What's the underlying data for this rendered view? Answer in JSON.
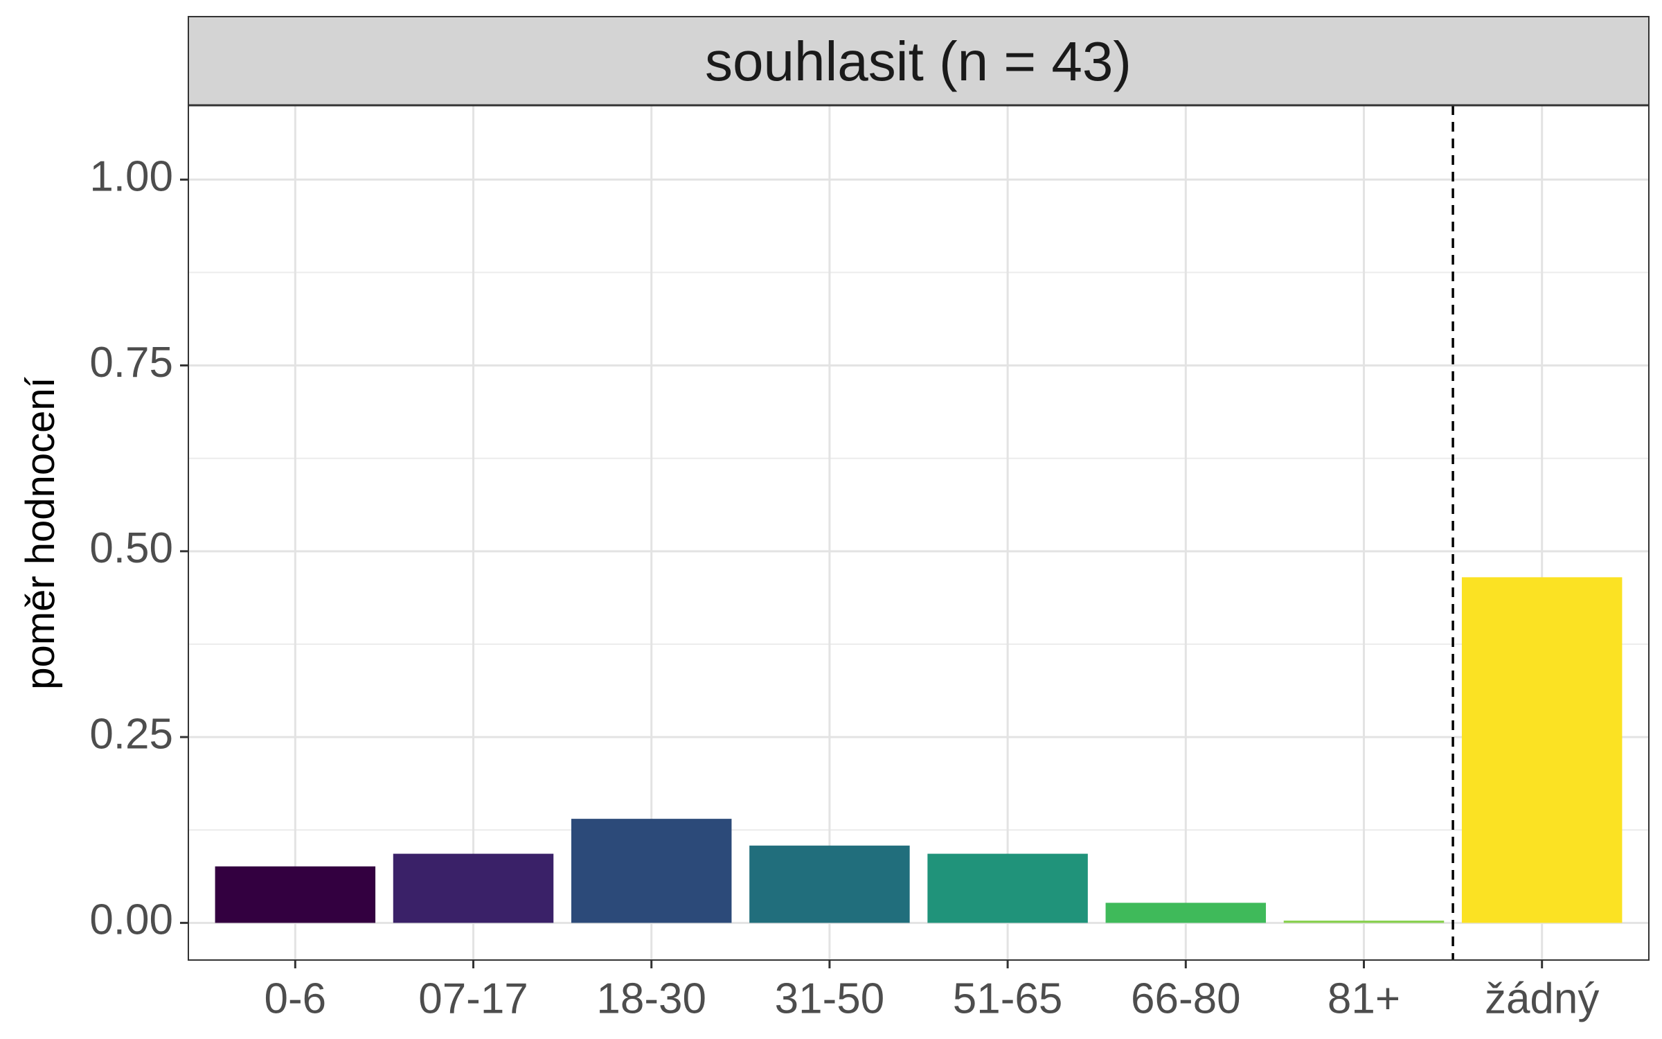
{
  "chart_data": {
    "type": "bar",
    "facet_title": "souhlasit (n = 43)",
    "ylabel": "poměr hodnocení",
    "xlabel": "",
    "categories": [
      "0-6",
      "07-17",
      "18-30",
      "31-50",
      "51-65",
      "66-80",
      "81+",
      "žádný"
    ],
    "values": [
      0.076,
      0.093,
      0.14,
      0.104,
      0.093,
      0.027,
      0.003,
      0.465
    ],
    "colors": [
      "#330040",
      "#3a2168",
      "#2c4a79",
      "#216e7c",
      "#20937a",
      "#3fba5a",
      "#86cf4c",
      "#fbe223"
    ],
    "ylim": [
      -0.05,
      1.1
    ],
    "yticks": [
      "0.00",
      "0.25",
      "0.50",
      "0.75",
      "1.00"
    ],
    "ytick_values": [
      0,
      0.25,
      0.5,
      0.75,
      1.0
    ],
    "separator_after_category": "81+",
    "separator_style": "dashed",
    "grid": true,
    "legend": "none"
  }
}
